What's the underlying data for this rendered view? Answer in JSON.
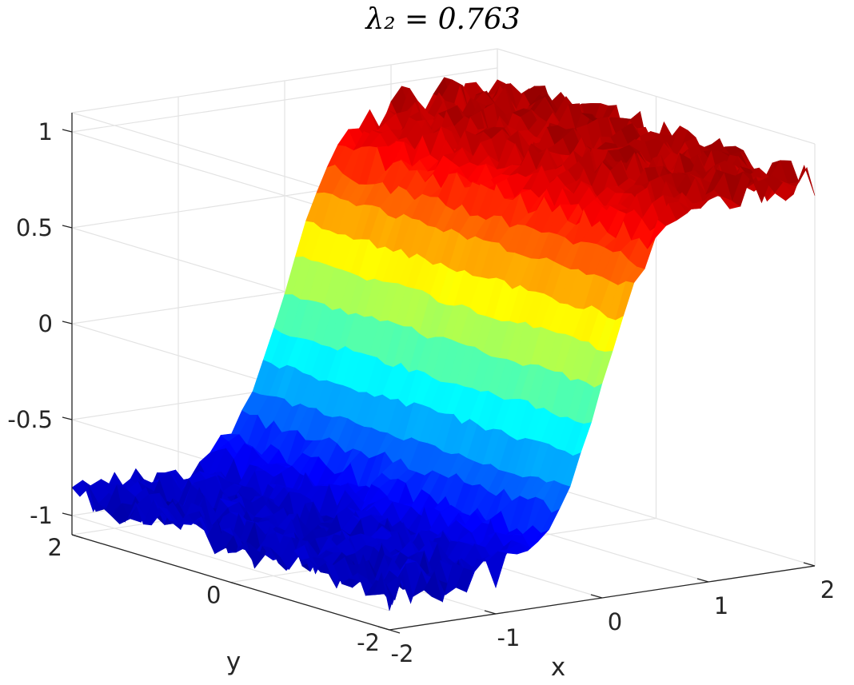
{
  "chart_data": {
    "type": "surface",
    "title": "λ₂ = 0.763",
    "xlabel": "x",
    "ylabel": "y",
    "zlabel": "",
    "xlim": [
      -2,
      2
    ],
    "ylim": [
      -2,
      2
    ],
    "zlim": [
      -1.1,
      1.1
    ],
    "xticks": [
      -2,
      -1,
      0,
      1,
      2
    ],
    "yticks": [
      -2,
      0,
      2
    ],
    "zticks": [
      -1,
      -0.5,
      0,
      0.5,
      1
    ],
    "xtick_labels": [
      "-2",
      "-1",
      "0",
      "1",
      "2"
    ],
    "ytick_labels": [
      "-2",
      "0",
      "2"
    ],
    "ztick_labels": [
      "-1",
      "-0.5",
      "0",
      "0.5",
      "1"
    ],
    "grid": true,
    "colormap": "jet",
    "colormap_colors": [
      "#00008f",
      "#0000ff",
      "#00ffff",
      "#ffff00",
      "#ff0000",
      "#800000"
    ],
    "surface_profile": {
      "x": [
        -2,
        -1.5,
        -1,
        -0.75,
        -0.5,
        -0.3,
        -0.1,
        0,
        0.1,
        0.3,
        0.5,
        0.75,
        1,
        1.5,
        2
      ],
      "z": [
        -0.9,
        -0.9,
        -0.88,
        -0.83,
        -0.72,
        -0.5,
        -0.18,
        0.0,
        0.18,
        0.5,
        0.72,
        0.83,
        0.88,
        0.9,
        0.9
      ]
    },
    "noise_amplitude": 0.08
  }
}
